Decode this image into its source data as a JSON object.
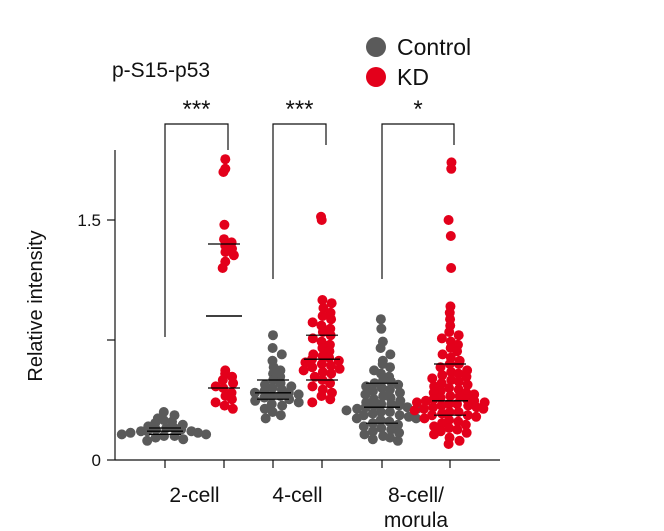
{
  "chart_data": {
    "type": "scatter",
    "title": "p-S15-p53",
    "xlabel": "",
    "ylabel": "Relative intensity",
    "ylim": [
      0,
      1.95
    ],
    "yticks": [
      {
        "value": 0,
        "label": "0"
      },
      {
        "value": 0.75,
        "label": ""
      },
      {
        "value": 1.5,
        "label": "1.5"
      }
    ],
    "categories": [
      "2-cell",
      "4-cell",
      "8-cell/\nmorula"
    ],
    "category_labels": [
      [
        "2-cell"
      ],
      [
        "4-cell"
      ],
      [
        "8-cell/",
        "morula"
      ]
    ],
    "legend": {
      "position": "top-right"
    },
    "series": [
      {
        "name": "Control",
        "color": "#5a5a5a"
      },
      {
        "name": "KD",
        "color": "#e3001b"
      }
    ],
    "groups": [
      {
        "category": "2-cell",
        "series": "Control",
        "mean": 0.18,
        "sd_low": 0.16,
        "sd_high": 0.2,
        "points": [
          0.3,
          0.28,
          0.26,
          0.25,
          0.24,
          0.23,
          0.22,
          0.21,
          0.2,
          0.2,
          0.19,
          0.19,
          0.18,
          0.18,
          0.18,
          0.17,
          0.17,
          0.16,
          0.16,
          0.15,
          0.15,
          0.14,
          0.13,
          0.12
        ]
      },
      {
        "category": "2-cell",
        "series": "KD",
        "mean": 0.9,
        "sd_low": 0.45,
        "sd_high": 1.35,
        "points": [
          1.88,
          1.82,
          1.8,
          1.47,
          1.38,
          1.36,
          1.34,
          1.32,
          1.3,
          1.28,
          1.24,
          1.2,
          0.56,
          0.54,
          0.52,
          0.5,
          0.48,
          0.46,
          0.45,
          0.42,
          0.4,
          0.38,
          0.36,
          0.34,
          0.32
        ]
      },
      {
        "category": "4-cell",
        "series": "Control",
        "mean": 0.42,
        "sd_low": 0.38,
        "sd_high": 0.5,
        "points": [
          0.78,
          0.7,
          0.66,
          0.62,
          0.58,
          0.56,
          0.54,
          0.52,
          0.5,
          0.48,
          0.47,
          0.46,
          0.45,
          0.44,
          0.43,
          0.42,
          0.42,
          0.41,
          0.4,
          0.4,
          0.39,
          0.38,
          0.37,
          0.36,
          0.35,
          0.34,
          0.32,
          0.3,
          0.28,
          0.26
        ]
      },
      {
        "category": "4-cell",
        "series": "KD",
        "mean": 0.63,
        "sd_low": 0.5,
        "sd_high": 0.78,
        "points": [
          1.52,
          1.5,
          1.0,
          0.98,
          0.95,
          0.92,
          0.9,
          0.88,
          0.86,
          0.84,
          0.82,
          0.8,
          0.78,
          0.76,
          0.74,
          0.72,
          0.7,
          0.68,
          0.66,
          0.65,
          0.64,
          0.63,
          0.62,
          0.61,
          0.6,
          0.59,
          0.58,
          0.57,
          0.56,
          0.55,
          0.54,
          0.52,
          0.5,
          0.48,
          0.46,
          0.44,
          0.42,
          0.4,
          0.38,
          0.36
        ]
      },
      {
        "category": "8-cell/morula",
        "series": "Control",
        "mean": 0.33,
        "sd_low": 0.23,
        "sd_high": 0.48,
        "points": [
          0.88,
          0.82,
          0.74,
          0.7,
          0.66,
          0.62,
          0.6,
          0.58,
          0.56,
          0.54,
          0.52,
          0.5,
          0.49,
          0.48,
          0.47,
          0.46,
          0.45,
          0.44,
          0.43,
          0.42,
          0.41,
          0.4,
          0.39,
          0.38,
          0.37,
          0.36,
          0.35,
          0.35,
          0.34,
          0.34,
          0.33,
          0.33,
          0.32,
          0.32,
          0.31,
          0.3,
          0.3,
          0.29,
          0.28,
          0.28,
          0.27,
          0.26,
          0.26,
          0.25,
          0.24,
          0.23,
          0.22,
          0.21,
          0.2,
          0.19,
          0.18,
          0.17,
          0.16,
          0.15,
          0.14,
          0.13,
          0.12
        ]
      },
      {
        "category": "8-cell/morula",
        "series": "KD",
        "mean": 0.37,
        "sd_low": 0.28,
        "sd_high": 0.6,
        "points": [
          1.86,
          1.82,
          1.5,
          1.4,
          1.2,
          0.96,
          0.92,
          0.88,
          0.84,
          0.8,
          0.78,
          0.76,
          0.74,
          0.72,
          0.7,
          0.68,
          0.66,
          0.64,
          0.62,
          0.6,
          0.6,
          0.58,
          0.56,
          0.55,
          0.54,
          0.53,
          0.52,
          0.51,
          0.5,
          0.49,
          0.48,
          0.47,
          0.46,
          0.45,
          0.44,
          0.43,
          0.42,
          0.42,
          0.41,
          0.4,
          0.4,
          0.39,
          0.38,
          0.38,
          0.37,
          0.37,
          0.36,
          0.36,
          0.35,
          0.35,
          0.34,
          0.34,
          0.33,
          0.33,
          0.32,
          0.32,
          0.31,
          0.3,
          0.3,
          0.29,
          0.28,
          0.28,
          0.27,
          0.26,
          0.25,
          0.24,
          0.23,
          0.22,
          0.21,
          0.2,
          0.19,
          0.18,
          0.17,
          0.16,
          0.14,
          0.12,
          0.1
        ]
      }
    ],
    "significance": [
      {
        "category": "2-cell",
        "label": "***"
      },
      {
        "category": "4-cell",
        "label": "***"
      },
      {
        "category": "8-cell/morula",
        "label": "*"
      }
    ]
  }
}
